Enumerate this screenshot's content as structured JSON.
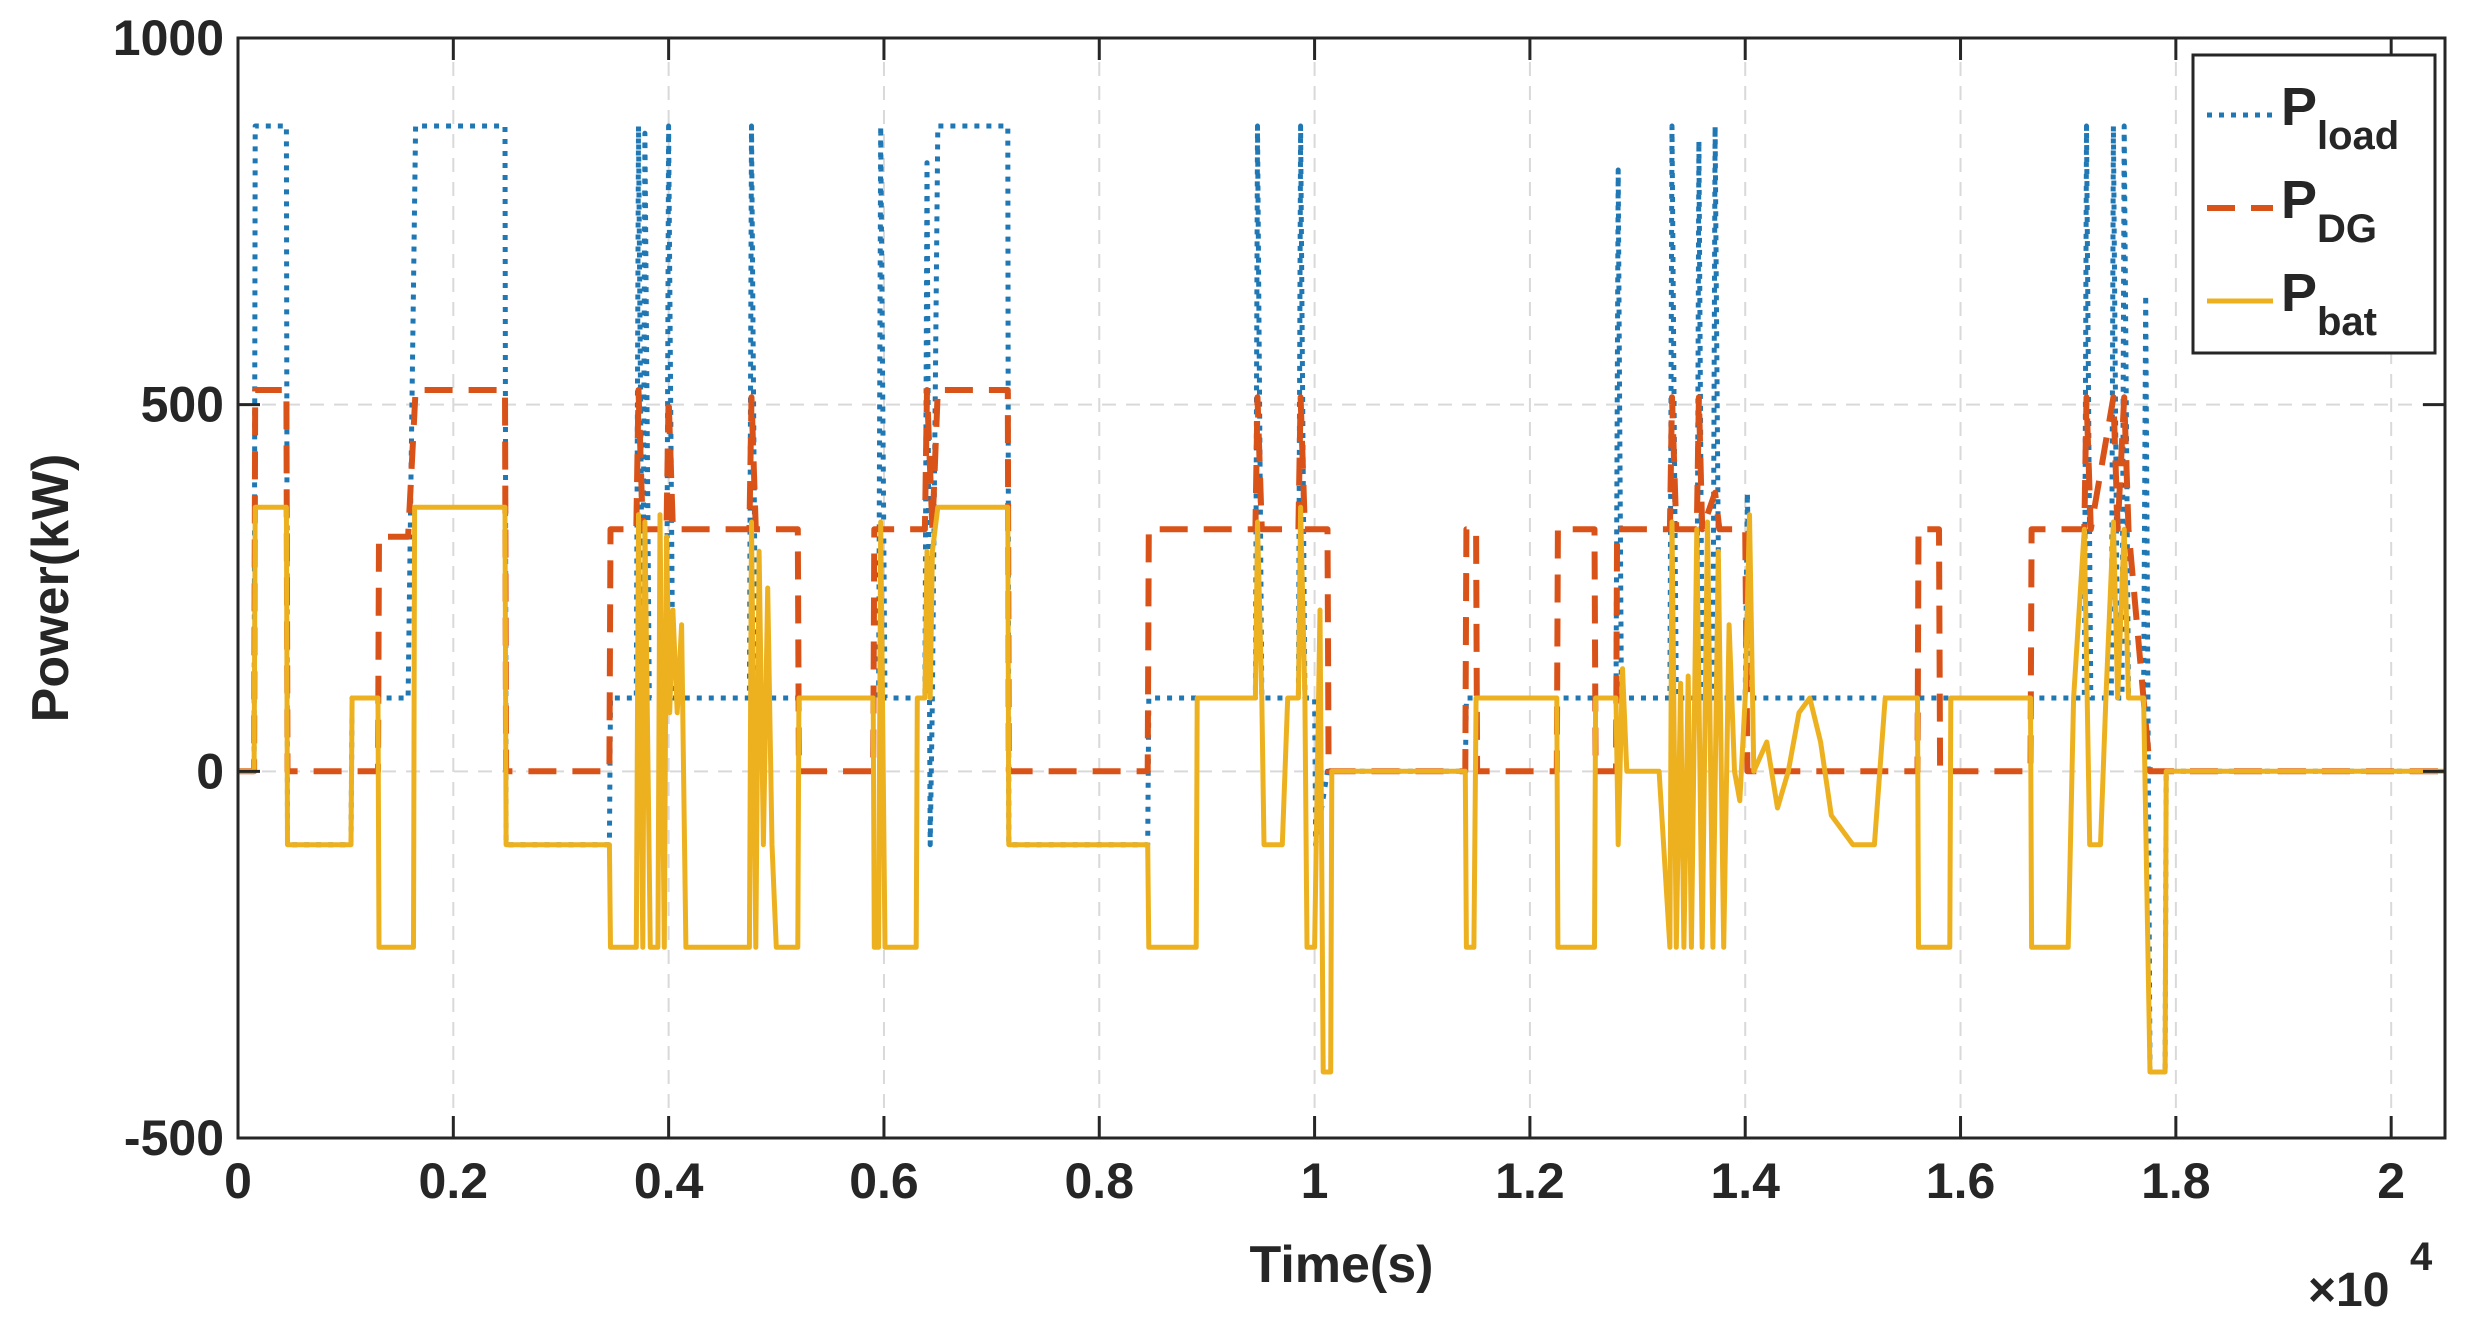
{
  "chart_data": {
    "type": "line",
    "title": "",
    "xlabel": "Time(s)",
    "ylabel": "Power(kW)",
    "x_exponent_label": "×10",
    "x_exponent_power": "4",
    "xlim": [
      0,
      2.05
    ],
    "ylim": [
      -500,
      1000
    ],
    "xticks": [
      0,
      0.2,
      0.4,
      0.6,
      0.8,
      1,
      1.2,
      1.4,
      1.6,
      1.8,
      2
    ],
    "xtick_labels": [
      "0",
      "0.2",
      "0.4",
      "0.6",
      "0.8",
      "1",
      "1.2",
      "1.4",
      "1.6",
      "1.8",
      "2"
    ],
    "yticks": [
      -500,
      0,
      500,
      1000
    ],
    "ytick_labels": [
      "-500",
      "0",
      "500",
      "1000"
    ],
    "grid": true,
    "legend_position": "top-right",
    "legend": [
      {
        "main": "P",
        "sub": "load"
      },
      {
        "main": "P",
        "sub": "DG"
      },
      {
        "main": "P",
        "sub": "bat"
      }
    ],
    "colors": {
      "load": "#1f77b4",
      "dg": "#d95319",
      "bat": "#edb120",
      "axis": "#262626",
      "grid": "#d9d9d9"
    },
    "series": [
      {
        "name": "P_load",
        "style": "dotted",
        "points": [
          [
            0,
            0
          ],
          [
            0.015,
            0
          ],
          [
            0.016,
            880
          ],
          [
            0.045,
            880
          ],
          [
            0.046,
            -100
          ],
          [
            0.105,
            -100
          ],
          [
            0.106,
            100
          ],
          [
            0.158,
            100
          ],
          [
            0.165,
            880
          ],
          [
            0.248,
            880
          ],
          [
            0.249,
            -100
          ],
          [
            0.345,
            -100
          ],
          [
            0.346,
            100
          ],
          [
            0.37,
            100
          ],
          [
            0.372,
            880
          ],
          [
            0.376,
            100
          ],
          [
            0.378,
            870
          ],
          [
            0.382,
            100
          ],
          [
            0.398,
            100
          ],
          [
            0.4,
            880
          ],
          [
            0.404,
            100
          ],
          [
            0.475,
            100
          ],
          [
            0.477,
            880
          ],
          [
            0.481,
            100
          ],
          [
            0.52,
            100
          ],
          [
            0.595,
            100
          ],
          [
            0.597,
            880
          ],
          [
            0.601,
            100
          ],
          [
            0.638,
            100
          ],
          [
            0.64,
            830
          ],
          [
            0.643,
            -100
          ],
          [
            0.645,
            100
          ],
          [
            0.65,
            880
          ],
          [
            0.715,
            880
          ],
          [
            0.716,
            -100
          ],
          [
            0.845,
            -100
          ],
          [
            0.846,
            100
          ],
          [
            0.945,
            100
          ],
          [
            0.947,
            880
          ],
          [
            0.951,
            100
          ],
          [
            0.985,
            100
          ],
          [
            0.987,
            880
          ],
          [
            0.991,
            100
          ],
          [
            1.0,
            100
          ],
          [
            1.001,
            -100
          ],
          [
            1.012,
            0
          ],
          [
            1.14,
            0
          ],
          [
            1.141,
            100
          ],
          [
            1.28,
            100
          ],
          [
            1.282,
            820
          ],
          [
            1.285,
            100
          ],
          [
            1.33,
            100
          ],
          [
            1.332,
            880
          ],
          [
            1.336,
            100
          ],
          [
            1.355,
            100
          ],
          [
            1.357,
            860
          ],
          [
            1.36,
            100
          ],
          [
            1.37,
            100
          ],
          [
            1.372,
            880
          ],
          [
            1.376,
            100
          ],
          [
            1.4,
            100
          ],
          [
            1.402,
            380
          ],
          [
            1.405,
            100
          ],
          [
            1.56,
            100
          ],
          [
            1.7,
            100
          ],
          [
            1.715,
            100
          ],
          [
            1.717,
            880
          ],
          [
            1.721,
            100
          ],
          [
            1.74,
            100
          ],
          [
            1.742,
            880
          ],
          [
            1.746,
            100
          ],
          [
            1.75,
            100
          ],
          [
            1.752,
            880
          ],
          [
            1.756,
            100
          ],
          [
            1.77,
            100
          ],
          [
            1.772,
            650
          ],
          [
            1.776,
            -410
          ],
          [
            1.79,
            -410
          ],
          [
            1.791,
            0
          ],
          [
            2.05,
            0
          ]
        ]
      },
      {
        "name": "P_DG",
        "style": "dashed",
        "points": [
          [
            0,
            0
          ],
          [
            0.015,
            0
          ],
          [
            0.016,
            520
          ],
          [
            0.045,
            520
          ],
          [
            0.046,
            0
          ],
          [
            0.13,
            0
          ],
          [
            0.131,
            320
          ],
          [
            0.158,
            320
          ],
          [
            0.165,
            520
          ],
          [
            0.248,
            520
          ],
          [
            0.249,
            0
          ],
          [
            0.345,
            0
          ],
          [
            0.346,
            330
          ],
          [
            0.37,
            330
          ],
          [
            0.372,
            520
          ],
          [
            0.376,
            330
          ],
          [
            0.398,
            330
          ],
          [
            0.4,
            510
          ],
          [
            0.404,
            330
          ],
          [
            0.475,
            330
          ],
          [
            0.477,
            510
          ],
          [
            0.481,
            330
          ],
          [
            0.52,
            330
          ],
          [
            0.521,
            0
          ],
          [
            0.59,
            0
          ],
          [
            0.591,
            330
          ],
          [
            0.638,
            330
          ],
          [
            0.64,
            520
          ],
          [
            0.645,
            330
          ],
          [
            0.65,
            520
          ],
          [
            0.715,
            520
          ],
          [
            0.716,
            0
          ],
          [
            0.845,
            0
          ],
          [
            0.846,
            330
          ],
          [
            0.945,
            330
          ],
          [
            0.947,
            510
          ],
          [
            0.951,
            330
          ],
          [
            0.985,
            330
          ],
          [
            0.987,
            510
          ],
          [
            0.991,
            330
          ],
          [
            1.012,
            330
          ],
          [
            1.013,
            0
          ],
          [
            1.14,
            0
          ],
          [
            1.141,
            330
          ],
          [
            1.15,
            330
          ],
          [
            1.151,
            0
          ],
          [
            1.225,
            0
          ],
          [
            1.226,
            330
          ],
          [
            1.26,
            330
          ],
          [
            1.261,
            0
          ],
          [
            1.28,
            0
          ],
          [
            1.281,
            330
          ],
          [
            1.33,
            330
          ],
          [
            1.332,
            510
          ],
          [
            1.336,
            330
          ],
          [
            1.355,
            330
          ],
          [
            1.357,
            510
          ],
          [
            1.36,
            330
          ],
          [
            1.372,
            380
          ],
          [
            1.376,
            330
          ],
          [
            1.4,
            330
          ],
          [
            1.402,
            0
          ],
          [
            1.56,
            0
          ],
          [
            1.561,
            330
          ],
          [
            1.58,
            330
          ],
          [
            1.581,
            0
          ],
          [
            1.665,
            0
          ],
          [
            1.666,
            330
          ],
          [
            1.715,
            330
          ],
          [
            1.717,
            510
          ],
          [
            1.721,
            330
          ],
          [
            1.742,
            510
          ],
          [
            1.746,
            330
          ],
          [
            1.752,
            510
          ],
          [
            1.756,
            330
          ],
          [
            1.776,
            0
          ],
          [
            2.05,
            0
          ]
        ]
      },
      {
        "name": "P_bat",
        "style": "solid",
        "points": [
          [
            0,
            0
          ],
          [
            0.015,
            0
          ],
          [
            0.016,
            360
          ],
          [
            0.045,
            360
          ],
          [
            0.046,
            -100
          ],
          [
            0.105,
            -100
          ],
          [
            0.106,
            100
          ],
          [
            0.13,
            100
          ],
          [
            0.131,
            -240
          ],
          [
            0.163,
            -240
          ],
          [
            0.164,
            360
          ],
          [
            0.248,
            360
          ],
          [
            0.249,
            -100
          ],
          [
            0.345,
            -100
          ],
          [
            0.346,
            -240
          ],
          [
            0.37,
            -240
          ],
          [
            0.372,
            350
          ],
          [
            0.376,
            -240
          ],
          [
            0.378,
            340
          ],
          [
            0.383,
            -240
          ],
          [
            0.39,
            -240
          ],
          [
            0.392,
            350
          ],
          [
            0.396,
            -240
          ],
          [
            0.398,
            320
          ],
          [
            0.401,
            80
          ],
          [
            0.404,
            220
          ],
          [
            0.408,
            80
          ],
          [
            0.412,
            200
          ],
          [
            0.416,
            -240
          ],
          [
            0.475,
            -240
          ],
          [
            0.477,
            340
          ],
          [
            0.481,
            -240
          ],
          [
            0.484,
            300
          ],
          [
            0.488,
            -100
          ],
          [
            0.492,
            250
          ],
          [
            0.496,
            -100
          ],
          [
            0.5,
            -240
          ],
          [
            0.52,
            -240
          ],
          [
            0.521,
            100
          ],
          [
            0.59,
            100
          ],
          [
            0.591,
            -240
          ],
          [
            0.595,
            -240
          ],
          [
            0.597,
            340
          ],
          [
            0.601,
            -240
          ],
          [
            0.63,
            -240
          ],
          [
            0.631,
            100
          ],
          [
            0.638,
            100
          ],
          [
            0.64,
            300
          ],
          [
            0.643,
            100
          ],
          [
            0.645,
            300
          ],
          [
            0.65,
            360
          ],
          [
            0.715,
            360
          ],
          [
            0.716,
            -100
          ],
          [
            0.845,
            -100
          ],
          [
            0.846,
            -240
          ],
          [
            0.89,
            -240
          ],
          [
            0.891,
            100
          ],
          [
            0.945,
            100
          ],
          [
            0.947,
            340
          ],
          [
            0.951,
            100
          ],
          [
            0.953,
            -100
          ],
          [
            0.97,
            -100
          ],
          [
            0.975,
            100
          ],
          [
            0.985,
            100
          ],
          [
            0.987,
            360
          ],
          [
            0.991,
            100
          ],
          [
            0.993,
            -240
          ],
          [
            1.0,
            -240
          ],
          [
            1.005,
            220
          ],
          [
            1.008,
            -410
          ],
          [
            1.015,
            -410
          ],
          [
            1.016,
            0
          ],
          [
            1.14,
            0
          ],
          [
            1.141,
            -240
          ],
          [
            1.148,
            -240
          ],
          [
            1.15,
            100
          ],
          [
            1.225,
            100
          ],
          [
            1.226,
            -240
          ],
          [
            1.26,
            -240
          ],
          [
            1.261,
            100
          ],
          [
            1.28,
            100
          ],
          [
            1.282,
            -100
          ],
          [
            1.286,
            140
          ],
          [
            1.29,
            0
          ],
          [
            1.32,
            0
          ],
          [
            1.33,
            -240
          ],
          [
            1.332,
            340
          ],
          [
            1.336,
            -240
          ],
          [
            1.34,
            120
          ],
          [
            1.343,
            -240
          ],
          [
            1.347,
            130
          ],
          [
            1.35,
            -240
          ],
          [
            1.355,
            330
          ],
          [
            1.36,
            -240
          ],
          [
            1.365,
            340
          ],
          [
            1.37,
            -240
          ],
          [
            1.375,
            300
          ],
          [
            1.38,
            -240
          ],
          [
            1.385,
            200
          ],
          [
            1.39,
            0
          ],
          [
            1.395,
            -40
          ],
          [
            1.4,
            100
          ],
          [
            1.404,
            350
          ],
          [
            1.408,
            0
          ],
          [
            1.42,
            40
          ],
          [
            1.43,
            -50
          ],
          [
            1.44,
            0
          ],
          [
            1.45,
            80
          ],
          [
            1.46,
            100
          ],
          [
            1.47,
            40
          ],
          [
            1.48,
            -60
          ],
          [
            1.5,
            -100
          ],
          [
            1.52,
            -100
          ],
          [
            1.53,
            100
          ],
          [
            1.56,
            100
          ],
          [
            1.561,
            -240
          ],
          [
            1.59,
            -240
          ],
          [
            1.591,
            100
          ],
          [
            1.665,
            100
          ],
          [
            1.666,
            -240
          ],
          [
            1.7,
            -240
          ],
          [
            1.705,
            100
          ],
          [
            1.715,
            330
          ],
          [
            1.72,
            -100
          ],
          [
            1.73,
            -100
          ],
          [
            1.735,
            100
          ],
          [
            1.742,
            340
          ],
          [
            1.746,
            100
          ],
          [
            1.752,
            330
          ],
          [
            1.756,
            100
          ],
          [
            1.77,
            100
          ],
          [
            1.776,
            -410
          ],
          [
            1.79,
            -410
          ],
          [
            1.791,
            0
          ],
          [
            2.05,
            0
          ]
        ]
      }
    ]
  }
}
